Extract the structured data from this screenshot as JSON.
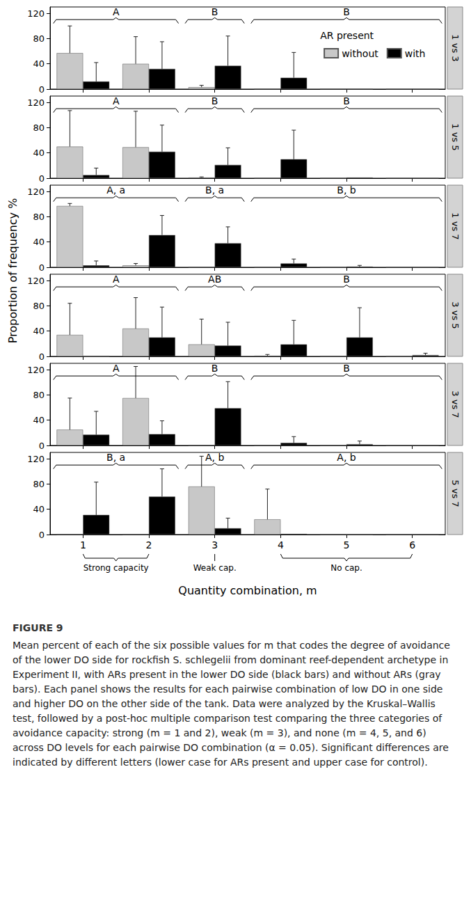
{
  "chart_data": {
    "type": "bar",
    "y_label": "Proportion of frequency %",
    "x_label": "Quantity combination, m",
    "categories": [
      "1",
      "2",
      "3",
      "4",
      "5",
      "6"
    ],
    "ylim": [
      0,
      130
    ],
    "yticks": [
      0,
      40,
      80,
      120
    ],
    "legend": "upper right",
    "legend_title": "AR present",
    "capacity_groups": [
      {
        "label": "Strong capacity",
        "from": "1",
        "to": "2"
      },
      {
        "label": "Weak cap.",
        "from": "3",
        "to": "3"
      },
      {
        "label": "No cap.",
        "from": "4",
        "to": "6"
      }
    ],
    "panels": [
      {
        "title": "1 vs 3",
        "series": [
          {
            "name": "without",
            "color": "#c8c8c8",
            "values": [
              57,
              40,
              3,
              0,
              0,
              0
            ],
            "errors": [
              43,
              43,
              3,
              0,
              0,
              0
            ]
          },
          {
            "name": "with",
            "color": "#000000",
            "values": [
              12,
              32,
              37,
              18,
              0,
              0
            ],
            "errors": [
              30,
              43,
              47,
              40,
              0,
              0
            ]
          }
        ],
        "letters": [
          {
            "text": "A",
            "from": "1",
            "to": "2"
          },
          {
            "text": "B",
            "from": "3",
            "to": "3"
          },
          {
            "text": "B",
            "from": "4",
            "to": "6"
          }
        ]
      },
      {
        "title": "1 vs 5",
        "series": [
          {
            "name": "without",
            "color": "#c8c8c8",
            "values": [
              50,
              49,
              1,
              0,
              0,
              0
            ],
            "errors": [
              57,
              57,
              1,
              0,
              0,
              0
            ]
          },
          {
            "name": "with",
            "color": "#000000",
            "values": [
              5,
              42,
              21,
              30,
              1,
              0
            ],
            "errors": [
              11,
              42,
              27,
              46,
              0,
              0
            ]
          }
        ],
        "letters": [
          {
            "text": "A",
            "from": "1",
            "to": "2"
          },
          {
            "text": "B",
            "from": "3",
            "to": "3"
          },
          {
            "text": "B",
            "from": "4",
            "to": "6"
          }
        ]
      },
      {
        "title": "1 vs 7",
        "series": [
          {
            "name": "without",
            "color": "#c8c8c8",
            "values": [
              97,
              3,
              0,
              0,
              0,
              0
            ],
            "errors": [
              4,
              3,
              0,
              0,
              0,
              0
            ]
          },
          {
            "name": "with",
            "color": "#000000",
            "values": [
              3,
              51,
              38,
              6,
              1,
              0
            ],
            "errors": [
              7,
              31,
              26,
              7,
              2,
              0
            ]
          }
        ],
        "letters": [
          {
            "text": "A, a",
            "from": "1",
            "to": "2"
          },
          {
            "text": "B, a",
            "from": "3",
            "to": "3"
          },
          {
            "text": "B, b",
            "from": "4",
            "to": "6"
          }
        ]
      },
      {
        "title": "3 vs 5",
        "series": [
          {
            "name": "without",
            "color": "#c8c8c8",
            "values": [
              34,
              44,
              19,
              1,
              0,
              0
            ],
            "errors": [
              50,
              49,
              40,
              2,
              0,
              0
            ]
          },
          {
            "name": "with",
            "color": "#000000",
            "values": [
              0,
              30,
              17,
              19,
              30,
              2
            ],
            "errors": [
              0,
              48,
              37,
              38,
              47,
              3
            ]
          }
        ],
        "letters": [
          {
            "text": "A",
            "from": "1",
            "to": "2"
          },
          {
            "text": "AB",
            "from": "3",
            "to": "3"
          },
          {
            "text": "B",
            "from": "4",
            "to": "6"
          }
        ]
      },
      {
        "title": "3 vs 7",
        "series": [
          {
            "name": "without",
            "color": "#c8c8c8",
            "values": [
              25,
              75,
              0,
              0,
              0,
              0
            ],
            "errors": [
              50,
              50,
              0,
              0,
              0,
              0
            ]
          },
          {
            "name": "with",
            "color": "#000000",
            "values": [
              17,
              18,
              59,
              4,
              2,
              0
            ],
            "errors": [
              37,
              21,
              42,
              10,
              5,
              0
            ]
          }
        ],
        "letters": [
          {
            "text": "A",
            "from": "1",
            "to": "2"
          },
          {
            "text": "B",
            "from": "3",
            "to": "3"
          },
          {
            "text": "B",
            "from": "4",
            "to": "6"
          }
        ]
      },
      {
        "title": "5 vs 7",
        "series": [
          {
            "name": "without",
            "color": "#c8c8c8",
            "values": [
              0,
              0,
              76,
              24,
              0,
              0
            ],
            "errors": [
              0,
              0,
              48,
              48,
              0,
              0
            ]
          },
          {
            "name": "with",
            "color": "#000000",
            "values": [
              31,
              60,
              10,
              1,
              0,
              0
            ],
            "errors": [
              52,
              44,
              16,
              0,
              0,
              0
            ]
          }
        ],
        "letters": [
          {
            "text": "B, a",
            "from": "1",
            "to": "2"
          },
          {
            "text": "A, b",
            "from": "3",
            "to": "3"
          },
          {
            "text": "A, b",
            "from": "4",
            "to": "6"
          }
        ]
      }
    ],
    "figure_label": "FIGURE 9",
    "caption": "Mean percent of each of the six possible values for m that codes the degree of avoidance of the lower DO side for rockfish S. schlegelii from dominant reef-dependent archetype in Experiment II, with ARs present in the lower DO side (black bars) and without ARs (gray bars). Each panel shows the results for each pairwise combination of low DO in one side and higher DO on the other side of the tank. Data were analyzed by the Kruskal–Wallis test, followed by a post-hoc multiple comparison test comparing the three categories of avoidance capacity: strong (m = 1 and 2), weak (m = 3), and none (m = 4, 5, and 6) across DO levels for each pairwise DO combination (α = 0.05). Significant differences are indicated by different letters (lower case for ARs present and upper case for control)."
  }
}
